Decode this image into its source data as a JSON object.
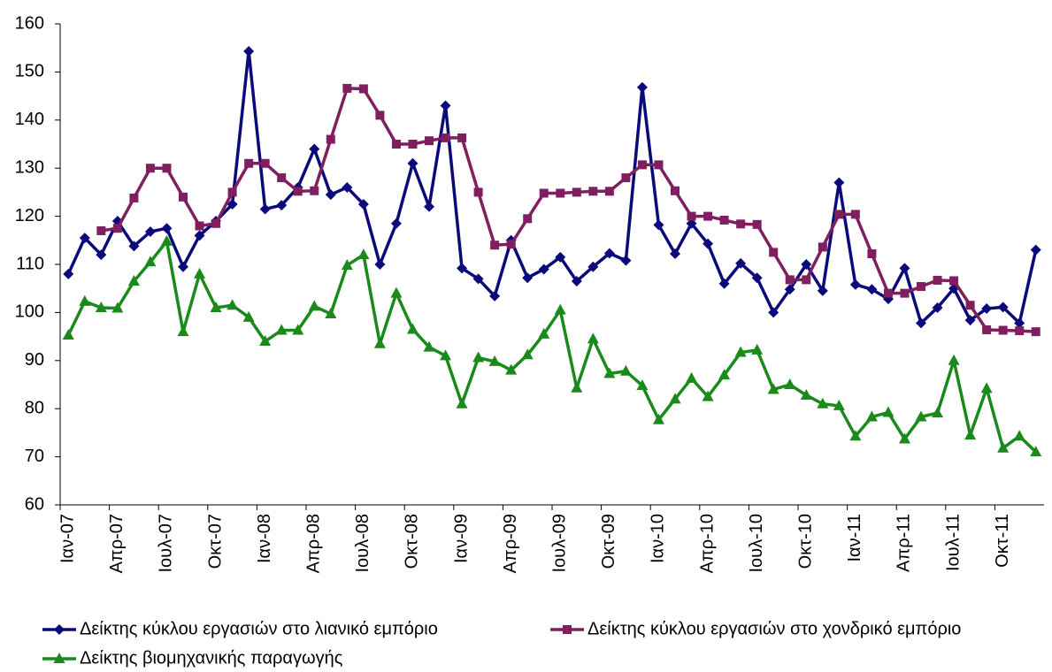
{
  "chart_data": {
    "type": "line",
    "categories": [
      "Ιαν-07",
      null,
      null,
      "Απρ-07",
      null,
      null,
      "Ιουλ-07",
      null,
      null,
      "Οκτ-07",
      null,
      null,
      "Ιαν-08",
      null,
      null,
      "Απρ-08",
      null,
      null,
      "Ιουλ-08",
      null,
      null,
      "Οκτ-08",
      null,
      null,
      "Ιαν-09",
      null,
      null,
      "Απρ-09",
      null,
      null,
      "Ιουλ-09",
      null,
      null,
      "Οκτ-09",
      null,
      null,
      "Ιαν-10",
      null,
      null,
      "Απρ-10",
      null,
      null,
      "Ιουλ-10",
      null,
      null,
      "Οκτ-10",
      null,
      null,
      "Ιαν-11",
      null,
      null,
      "Απρ-11",
      null,
      null,
      "Ιουλ-11",
      null,
      null,
      "Οκτ-11",
      null,
      null
    ],
    "series": [
      {
        "name": "Δείκτης κύκλου εργασιών στο λιανικό εμπόριο",
        "color": "#0a0a7a",
        "marker": "diamond",
        "values": [
          108,
          115.5,
          112,
          119,
          113.8,
          116.8,
          117.5,
          109.5,
          116,
          119,
          122.5,
          154.3,
          121.5,
          122.3,
          126,
          134,
          124.5,
          126,
          122.5,
          110,
          118.5,
          131,
          122,
          143,
          109.2,
          107,
          103.4,
          115,
          107.2,
          109,
          111.5,
          106.5,
          109.5,
          112.3,
          110.8,
          146.8,
          118.2,
          112.2,
          118.5,
          114.3,
          106,
          110.2,
          107.2,
          100,
          104.8,
          110,
          104.5,
          127,
          105.8,
          104.8,
          102.8,
          109.2,
          97.8,
          101,
          105,
          98.4,
          100.8,
          101.1,
          97.8,
          113
        ]
      },
      {
        "name": "Δείκτης κύκλου εργασιών στο χονδρικό εμπόριο",
        "color": "#7f1f5f",
        "marker": "square",
        "values": [
          null,
          null,
          117,
          117.5,
          123.8,
          130,
          130,
          124,
          118,
          118.5,
          125,
          131,
          131,
          128,
          125.2,
          125.3,
          136,
          146.6,
          146.5,
          141,
          135,
          135,
          135.7,
          136.3,
          136.3,
          125,
          114,
          114.2,
          119.5,
          124.8,
          124.8,
          125,
          125.2,
          125.2,
          128,
          130.7,
          130.7,
          125.3,
          120,
          120,
          119.2,
          118.4,
          118.3,
          112.5,
          106.8,
          106.8,
          113.6,
          120.4,
          120.4,
          112.2,
          104,
          104,
          105.4,
          106.7,
          106.6,
          101.5,
          96.4,
          96.3,
          96.2,
          96
        ]
      },
      {
        "name": "Δείκτης βιομηχανικής παραγωγής",
        "color": "#1a8a1a",
        "marker": "triangle",
        "values": [
          95.3,
          102.3,
          101,
          100.9,
          106.5,
          110.5,
          114.8,
          96,
          108,
          101,
          101.5,
          99,
          94,
          96.3,
          96.3,
          101.3,
          99.7,
          109.8,
          112,
          93.5,
          104,
          96.5,
          92.8,
          91,
          81,
          90.6,
          89.8,
          88,
          91.2,
          95.5,
          100.5,
          84.3,
          94.5,
          87.3,
          87.8,
          84.8,
          77.7,
          82,
          86.3,
          82.5,
          87,
          91.7,
          92.2,
          84,
          85,
          82.8,
          81,
          80.6,
          74.3,
          78.3,
          79.2,
          73.7,
          78.3,
          79.1,
          90,
          74.5,
          84.2,
          71.8,
          74.3,
          71
        ]
      }
    ],
    "ylim": [
      60,
      160
    ],
    "yticks": [
      60,
      70,
      80,
      90,
      100,
      110,
      120,
      130,
      140,
      150,
      160
    ],
    "grid": false,
    "legend": "bottom"
  }
}
